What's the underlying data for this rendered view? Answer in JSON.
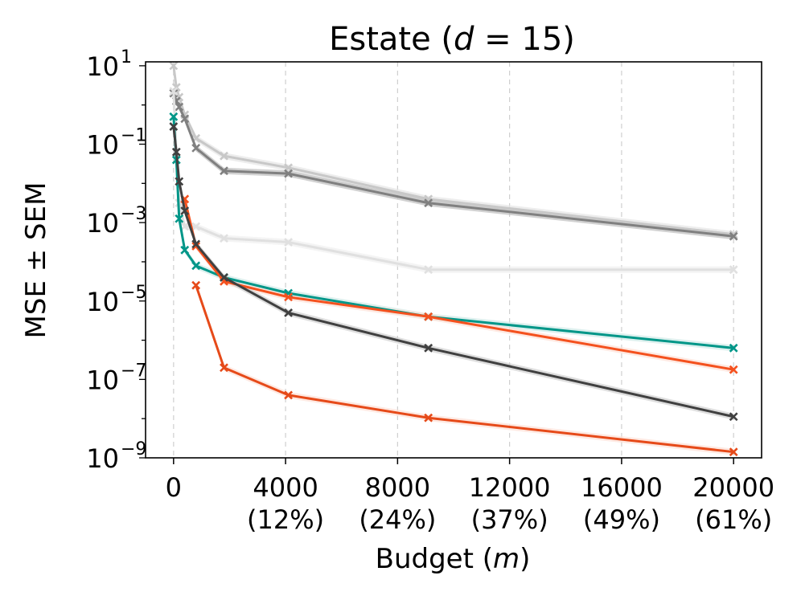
{
  "chart_data": {
    "type": "line",
    "title": {
      "prefix": "Estate (",
      "var": "d",
      "suffix": " = 15)"
    },
    "xlabel": {
      "prefix": "Budget (",
      "var": "m",
      "suffix": ")"
    },
    "ylabel": "MSE ± SEM",
    "yscale": "log",
    "xlim": [
      -1000,
      21000
    ],
    "ylim_exp": [
      -9,
      1.1
    ],
    "grid": "vertical dashed at x ticks",
    "x_ticks": [
      {
        "value": 0,
        "label": "0",
        "pct": ""
      },
      {
        "value": 4000,
        "label": "4000",
        "pct": "(12%)"
      },
      {
        "value": 8000,
        "label": "8000",
        "pct": "(24%)"
      },
      {
        "value": 12000,
        "label": "12000",
        "pct": "(37%)"
      },
      {
        "value": 16000,
        "label": "16000",
        "pct": "(49%)"
      },
      {
        "value": 20000,
        "label": "20000",
        "pct": "(61%)"
      }
    ],
    "y_ticks": [
      {
        "exp": 1,
        "base": "10",
        "sup": "1"
      },
      {
        "exp": -1,
        "base": "10",
        "sup": "−1"
      },
      {
        "exp": -3,
        "base": "10",
        "sup": "−3"
      },
      {
        "exp": -5,
        "base": "10",
        "sup": "−5"
      },
      {
        "exp": -7,
        "base": "10",
        "sup": "−7"
      },
      {
        "exp": -9,
        "base": "10",
        "sup": "−9"
      }
    ],
    "series": [
      {
        "name": "light-gray",
        "color": "#c8c8c8",
        "band_color": "#e6e6e6",
        "x": [
          0,
          100,
          200,
          400,
          800,
          1800,
          4100,
          9100,
          20000
        ],
        "log10_y": [
          1.0,
          0.45,
          0.2,
          -0.25,
          -0.85,
          -1.3,
          -1.6,
          -2.4,
          -3.3
        ]
      },
      {
        "name": "dark-gray",
        "color": "#808080",
        "band_color": "#bdbdbd",
        "x": [
          0,
          100,
          200,
          400,
          800,
          1800,
          4100,
          9100,
          20000
        ],
        "log10_y": [
          0.3,
          0.1,
          -0.05,
          -0.35,
          -1.1,
          -1.68,
          -1.75,
          -2.5,
          -3.35
        ]
      },
      {
        "name": "very-light-gray",
        "color": "#e0e0e0",
        "band_color": "#f0f0f0",
        "x": [
          0,
          100,
          200,
          400,
          800,
          1800,
          4100,
          9100,
          20000
        ],
        "log10_y": [
          0.35,
          -1.2,
          -2.5,
          -3.1,
          -3.1,
          -3.4,
          -3.5,
          -4.2,
          -4.2
        ]
      },
      {
        "name": "teal",
        "color": "#009688",
        "band_color": "#cfeae7",
        "x": [
          0,
          100,
          200,
          400,
          800,
          1800,
          4100,
          9100,
          20000
        ],
        "log10_y": [
          -0.3,
          -1.4,
          -2.9,
          -3.7,
          -4.1,
          -4.4,
          -4.8,
          -5.4,
          -6.2
        ]
      },
      {
        "name": "orange-upper",
        "color": "#f4511e",
        "band_color": "#fde0d5",
        "x": [
          400,
          800,
          1800,
          4100,
          9100,
          20000
        ],
        "log10_y": [
          -2.4,
          -3.6,
          -4.5,
          -4.9,
          -5.4,
          -6.75
        ]
      },
      {
        "name": "charcoal",
        "color": "#404040",
        "band_color": "#d0d0d0",
        "x": [
          0,
          100,
          200,
          400,
          800,
          1800,
          4100,
          9100,
          20000
        ],
        "log10_y": [
          -0.55,
          -1.2,
          -1.95,
          -2.7,
          -3.55,
          -4.4,
          -5.3,
          -6.2,
          -7.95
        ]
      },
      {
        "name": "orange-lower",
        "color": "#e64a19",
        "band_color": "#fde0d5",
        "x": [
          800,
          1800,
          4100,
          9100,
          20000
        ],
        "log10_y": [
          -4.6,
          -6.7,
          -7.4,
          -7.98,
          -8.85
        ]
      }
    ]
  }
}
